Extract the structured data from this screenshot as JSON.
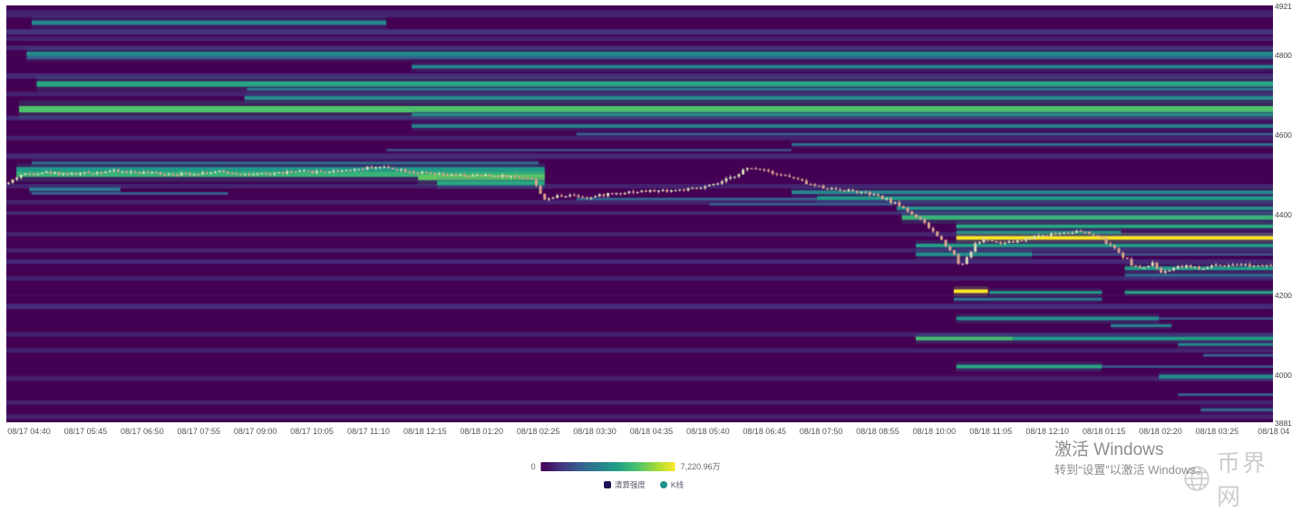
{
  "watermarks": {
    "activate_title": "激活 Windows",
    "activate_subtitle": "转到“设置”以激活 Windows。",
    "site_name": "币界网"
  },
  "legend": {
    "items": [
      {
        "label": "清算强度",
        "color": "#1c1256",
        "shape": "rect"
      },
      {
        "label": "K线",
        "color": "#21918c",
        "shape": "circle"
      }
    ]
  },
  "colorbar": {
    "min_label": "0",
    "max_label": "7,220.96万",
    "stops": [
      "#440154",
      "#46327e",
      "#365c8d",
      "#277f8e",
      "#1fa187",
      "#4ac16d",
      "#a0da39",
      "#fde725"
    ]
  },
  "chart_data": {
    "type": "heatmap",
    "title": "",
    "subtitle": "",
    "legend_position": "bottom",
    "grid": true,
    "y_axis": {
      "label": "",
      "min": 3881,
      "max": 4921,
      "ticks": [
        4921,
        4800,
        4600,
        4400,
        4200,
        4000,
        3881
      ]
    },
    "x_ticks": [
      "08/17 04:40",
      "08/17 05:45",
      "08/17 06:50",
      "08/17 07:55",
      "08/17 09:00",
      "08/17 10:05",
      "08/17 11:10",
      "08/18 12:15",
      "08/18 01:20",
      "08/18 02:25",
      "08/18 03:30",
      "08/18 04:35",
      "08/18 05:40",
      "08/18 06:45",
      "08/18 07:50",
      "08/18 08:55",
      "08/18 10:00",
      "08/18 11:05",
      "08/18 12:10",
      "08/18 01:15",
      "08/18 02:20",
      "08/18 03:25",
      "08/18 04"
    ],
    "intensity_scale": {
      "min": 0,
      "max": 72209600,
      "max_label": "7,220.96万"
    },
    "colors": {
      "background": "#440154",
      "grid": "rgba(255,255,255,0.05)",
      "candle_up": "#d8dcb8",
      "candle_down": "#dba48f"
    },
    "heat_bands": [
      [
        4878,
        0.02,
        0.3,
        0.45,
        5
      ],
      [
        4800,
        0.016,
        1.0,
        0.5,
        5
      ],
      [
        4791,
        0.016,
        1.0,
        0.32,
        3
      ],
      [
        4768,
        0.32,
        1.0,
        0.45,
        4
      ],
      [
        4725,
        0.024,
        1.0,
        0.6,
        6
      ],
      [
        4712,
        0.19,
        1.0,
        0.4,
        3
      ],
      [
        4690,
        0.188,
        1.0,
        0.5,
        4
      ],
      [
        4662,
        0.01,
        1.0,
        0.72,
        7
      ],
      [
        4649,
        0.32,
        1.0,
        0.5,
        3
      ],
      [
        4620,
        0.32,
        1.0,
        0.45,
        4
      ],
      [
        4600,
        0.45,
        1.0,
        0.3,
        3
      ],
      [
        4574,
        0.62,
        1.0,
        0.35,
        3
      ],
      [
        4560,
        0.3,
        0.62,
        0.22,
        3
      ],
      [
        4528,
        0.02,
        0.42,
        0.35,
        3
      ],
      [
        4512,
        0.008,
        0.425,
        0.55,
        5
      ],
      [
        4500,
        0.008,
        0.425,
        0.65,
        6
      ],
      [
        4492,
        0.325,
        0.425,
        0.75,
        6
      ],
      [
        4478,
        0.34,
        0.425,
        0.6,
        5
      ],
      [
        4462,
        0.018,
        0.09,
        0.4,
        4
      ],
      [
        4452,
        0.02,
        0.175,
        0.3,
        3
      ],
      [
        4455,
        0.62,
        1.0,
        0.45,
        4
      ],
      [
        4440,
        0.64,
        1.0,
        0.55,
        4
      ],
      [
        4438,
        0.45,
        0.64,
        0.3,
        3
      ],
      [
        4425,
        0.555,
        0.7,
        0.28,
        3
      ],
      [
        4415,
        0.703,
        1.0,
        0.5,
        4
      ],
      [
        4392,
        0.707,
        1.0,
        0.65,
        5
      ],
      [
        4370,
        0.75,
        1.0,
        0.6,
        4
      ],
      [
        4355,
        0.75,
        0.88,
        0.5,
        3
      ],
      [
        4341,
        0.75,
        1.0,
        1.0,
        4
      ],
      [
        4322,
        0.718,
        1.0,
        0.55,
        4
      ],
      [
        4300,
        0.718,
        0.81,
        0.5,
        4
      ],
      [
        4300,
        0.81,
        1.0,
        0.25,
        3
      ],
      [
        4265,
        0.883,
        1.0,
        0.55,
        4
      ],
      [
        4248,
        0.883,
        1.0,
        0.35,
        3
      ],
      [
        4208,
        0.748,
        0.775,
        1.0,
        4
      ],
      [
        4205,
        0.776,
        0.865,
        0.55,
        3
      ],
      [
        4205,
        0.883,
        1.0,
        0.6,
        3
      ],
      [
        4188,
        0.748,
        0.865,
        0.4,
        3
      ],
      [
        4140,
        0.75,
        0.91,
        0.5,
        4
      ],
      [
        4140,
        0.91,
        1.0,
        0.22,
        3
      ],
      [
        4122,
        0.872,
        0.92,
        0.45,
        3
      ],
      [
        4090,
        0.718,
        0.795,
        0.7,
        4
      ],
      [
        4090,
        0.795,
        1.0,
        0.55,
        4
      ],
      [
        4075,
        0.925,
        1.0,
        0.45,
        3
      ],
      [
        4048,
        0.945,
        1.0,
        0.3,
        3
      ],
      [
        4020,
        0.75,
        0.865,
        0.6,
        4
      ],
      [
        4020,
        0.865,
        1.0,
        0.25,
        3
      ],
      [
        3995,
        0.91,
        1.0,
        0.5,
        4
      ],
      [
        3950,
        0.925,
        1.0,
        0.3,
        3
      ],
      [
        3912,
        0.943,
        1.0,
        0.35,
        3
      ]
    ],
    "texture_stripes": [
      [
        4900,
        0,
        1,
        0.1,
        8
      ],
      [
        4855,
        0,
        1,
        0.14,
        6
      ],
      [
        4838,
        0,
        1,
        0.1,
        5
      ],
      [
        4815,
        0,
        1,
        0.12,
        5
      ],
      [
        4745,
        0,
        1,
        0.12,
        6
      ],
      [
        4700,
        0,
        1,
        0.1,
        5
      ],
      [
        4640,
        0,
        1,
        0.12,
        5
      ],
      [
        4590,
        0,
        1,
        0.1,
        5
      ],
      [
        4545,
        0,
        1,
        0.12,
        6
      ],
      [
        4470,
        0,
        1,
        0.1,
        5
      ],
      [
        4430,
        0,
        1,
        0.1,
        5
      ],
      [
        4403,
        0,
        1,
        0.12,
        4
      ],
      [
        4350,
        0,
        1,
        0.1,
        5
      ],
      [
        4310,
        0,
        1,
        0.1,
        5
      ],
      [
        4282,
        0,
        1,
        0.12,
        5
      ],
      [
        4240,
        0,
        1,
        0.1,
        5
      ],
      [
        4170,
        0,
        1,
        0.12,
        6
      ],
      [
        4100,
        0,
        1,
        0.1,
        5
      ],
      [
        4060,
        0,
        1,
        0.1,
        5
      ],
      [
        3990,
        0,
        1,
        0.1,
        5
      ],
      [
        3930,
        0,
        1,
        0.1,
        5
      ],
      [
        3895,
        0,
        1,
        0.1,
        5
      ]
    ],
    "price_path": [
      [
        0.0,
        4478
      ],
      [
        0.009,
        4498
      ],
      [
        0.027,
        4505
      ],
      [
        0.052,
        4500
      ],
      [
        0.081,
        4508
      ],
      [
        0.11,
        4503
      ],
      [
        0.138,
        4500
      ],
      [
        0.167,
        4506
      ],
      [
        0.195,
        4498
      ],
      [
        0.224,
        4506
      ],
      [
        0.253,
        4507
      ],
      [
        0.278,
        4513
      ],
      [
        0.292,
        4519
      ],
      [
        0.306,
        4514
      ],
      [
        0.324,
        4504
      ],
      [
        0.346,
        4497
      ],
      [
        0.367,
        4496
      ],
      [
        0.392,
        4496
      ],
      [
        0.414,
        4491
      ],
      [
        0.42,
        4460
      ],
      [
        0.426,
        4432
      ],
      [
        0.433,
        4445
      ],
      [
        0.446,
        4449
      ],
      [
        0.46,
        4441
      ],
      [
        0.475,
        4451
      ],
      [
        0.492,
        4456
      ],
      [
        0.51,
        4458
      ],
      [
        0.528,
        4460
      ],
      [
        0.546,
        4464
      ],
      [
        0.56,
        4474
      ],
      [
        0.573,
        4492
      ],
      [
        0.583,
        4512
      ],
      [
        0.595,
        4515
      ],
      [
        0.607,
        4503
      ],
      [
        0.621,
        4491
      ],
      [
        0.636,
        4473
      ],
      [
        0.65,
        4464
      ],
      [
        0.664,
        4460
      ],
      [
        0.675,
        4455
      ],
      [
        0.686,
        4447
      ],
      [
        0.696,
        4436
      ],
      [
        0.707,
        4420
      ],
      [
        0.717,
        4398
      ],
      [
        0.725,
        4378
      ],
      [
        0.734,
        4352
      ],
      [
        0.743,
        4322
      ],
      [
        0.75,
        4296
      ],
      [
        0.754,
        4268
      ],
      [
        0.759,
        4292
      ],
      [
        0.767,
        4330
      ],
      [
        0.775,
        4338
      ],
      [
        0.784,
        4326
      ],
      [
        0.793,
        4330
      ],
      [
        0.804,
        4336
      ],
      [
        0.815,
        4347
      ],
      [
        0.825,
        4350
      ],
      [
        0.836,
        4355
      ],
      [
        0.847,
        4357
      ],
      [
        0.858,
        4350
      ],
      [
        0.865,
        4341
      ],
      [
        0.874,
        4318
      ],
      [
        0.883,
        4295
      ],
      [
        0.891,
        4272
      ],
      [
        0.898,
        4262
      ],
      [
        0.906,
        4278
      ],
      [
        0.915,
        4252
      ],
      [
        0.922,
        4268
      ],
      [
        0.933,
        4272
      ],
      [
        0.944,
        4262
      ],
      [
        0.954,
        4272
      ],
      [
        0.965,
        4268
      ],
      [
        0.976,
        4275
      ],
      [
        0.986,
        4272
      ],
      [
        1.0,
        4276
      ]
    ],
    "candles": 300
  }
}
